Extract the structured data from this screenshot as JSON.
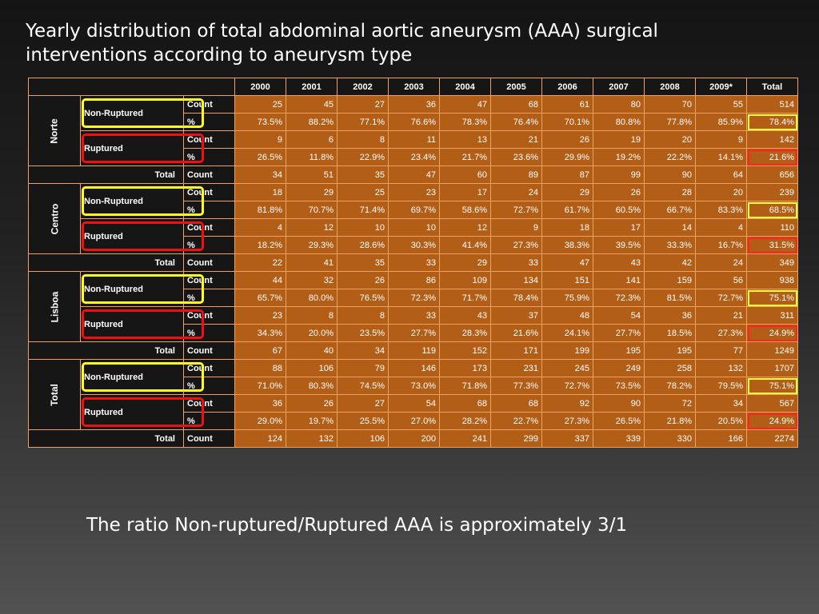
{
  "slide": {
    "title": "Yearly distribution of total abdominal aortic aneurysm (AAA) surgical interventions according to aneurysm type",
    "caption": "The ratio Non-ruptured/Ruptured AAA is approximately 3/1"
  },
  "table": {
    "headers": [
      "2000",
      "2001",
      "2002",
      "2003",
      "2004",
      "2005",
      "2006",
      "2007",
      "2008",
      "2009*",
      "Total"
    ],
    "labels": {
      "non_ruptured": "Non-Ruptured",
      "ruptured": "Ruptured",
      "total": "Total",
      "count": "Count",
      "percent": "%"
    },
    "regions": [
      {
        "name": "Norte",
        "nr_count": [
          "25",
          "45",
          "27",
          "36",
          "47",
          "68",
          "61",
          "80",
          "70",
          "55",
          "514"
        ],
        "nr_pct": [
          "73.5%",
          "88.2%",
          "77.1%",
          "76.6%",
          "78.3%",
          "76.4%",
          "70.1%",
          "80.8%",
          "77.8%",
          "85.9%",
          "78.4%"
        ],
        "r_count": [
          "9",
          "6",
          "8",
          "11",
          "13",
          "21",
          "26",
          "19",
          "20",
          "9",
          "142"
        ],
        "r_pct": [
          "26.5%",
          "11.8%",
          "22.9%",
          "23.4%",
          "21.7%",
          "23.6%",
          "29.9%",
          "19.2%",
          "22.2%",
          "14.1%",
          "21.6%"
        ],
        "total": [
          "34",
          "51",
          "35",
          "47",
          "60",
          "89",
          "87",
          "99",
          "90",
          "64",
          "656"
        ]
      },
      {
        "name": "Centro",
        "nr_count": [
          "18",
          "29",
          "25",
          "23",
          "17",
          "24",
          "29",
          "26",
          "28",
          "20",
          "239"
        ],
        "nr_pct": [
          "81.8%",
          "70.7%",
          "71.4%",
          "69.7%",
          "58.6%",
          "72.7%",
          "61.7%",
          "60.5%",
          "66.7%",
          "83.3%",
          "68.5%"
        ],
        "r_count": [
          "4",
          "12",
          "10",
          "10",
          "12",
          "9",
          "18",
          "17",
          "14",
          "4",
          "110"
        ],
        "r_pct": [
          "18.2%",
          "29.3%",
          "28.6%",
          "30.3%",
          "41.4%",
          "27.3%",
          "38.3%",
          "39.5%",
          "33.3%",
          "16.7%",
          "31.5%"
        ],
        "total": [
          "22",
          "41",
          "35",
          "33",
          "29",
          "33",
          "47",
          "43",
          "42",
          "24",
          "349"
        ]
      },
      {
        "name": "Lisboa",
        "nr_count": [
          "44",
          "32",
          "26",
          "86",
          "109",
          "134",
          "151",
          "141",
          "159",
          "56",
          "938"
        ],
        "nr_pct": [
          "65.7%",
          "80.0%",
          "76.5%",
          "72.3%",
          "71.7%",
          "78.4%",
          "75.9%",
          "72.3%",
          "81.5%",
          "72.7%",
          "75.1%"
        ],
        "r_count": [
          "23",
          "8",
          "8",
          "33",
          "43",
          "37",
          "48",
          "54",
          "36",
          "21",
          "311"
        ],
        "r_pct": [
          "34.3%",
          "20.0%",
          "23.5%",
          "27.7%",
          "28.3%",
          "21.6%",
          "24.1%",
          "27.7%",
          "18.5%",
          "27.3%",
          "24.9%"
        ],
        "total": [
          "67",
          "40",
          "34",
          "119",
          "152",
          "171",
          "199",
          "195",
          "195",
          "77",
          "1249"
        ]
      },
      {
        "name": "Total",
        "nr_count": [
          "88",
          "106",
          "79",
          "146",
          "173",
          "231",
          "245",
          "249",
          "258",
          "132",
          "1707"
        ],
        "nr_pct": [
          "71.0%",
          "80.3%",
          "74.5%",
          "73.0%",
          "71.8%",
          "77.3%",
          "72.7%",
          "73.5%",
          "78.2%",
          "79.5%",
          "75.1%"
        ],
        "r_count": [
          "36",
          "26",
          "27",
          "54",
          "68",
          "68",
          "92",
          "90",
          "72",
          "34",
          "567"
        ],
        "r_pct": [
          "29.0%",
          "19.7%",
          "25.5%",
          "27.0%",
          "28.2%",
          "22.7%",
          "27.3%",
          "26.5%",
          "21.8%",
          "20.5%",
          "24.9%"
        ],
        "total": [
          "124",
          "132",
          "106",
          "200",
          "241",
          "299",
          "337",
          "339",
          "330",
          "166",
          "2274"
        ]
      }
    ]
  },
  "colors": {
    "cell_fill": "#b35e17",
    "cell_border": "#f0a060",
    "label_fill": "#161616",
    "highlight_non_ruptured": "#ffff33",
    "highlight_ruptured": "#ee1111"
  }
}
